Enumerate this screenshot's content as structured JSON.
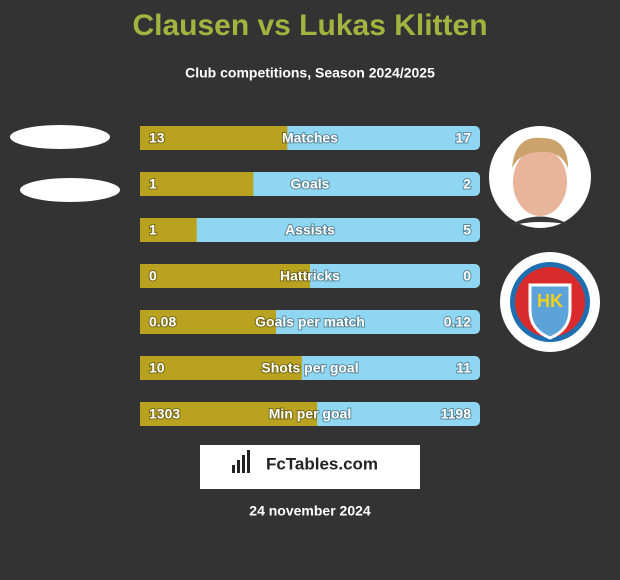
{
  "title": "Clausen vs Lukas Klitten",
  "subtitle": "Club competitions, Season 2024/2025",
  "rows": [
    {
      "label": "Matches",
      "left": 13,
      "right": 17
    },
    {
      "label": "Goals",
      "left": 1,
      "right": 2
    },
    {
      "label": "Assists",
      "left": 1,
      "right": 5
    },
    {
      "label": "Hattricks",
      "left": 0,
      "right": 0
    },
    {
      "label": "Goals per match",
      "left": 0.08,
      "right": 0.12
    },
    {
      "label": "Shots per goal",
      "left": 10,
      "right": 11
    },
    {
      "label": "Min per goal",
      "left": 1303,
      "right": 1198
    }
  ],
  "logo": "FcTables.com",
  "date": "24 november 2024"
}
